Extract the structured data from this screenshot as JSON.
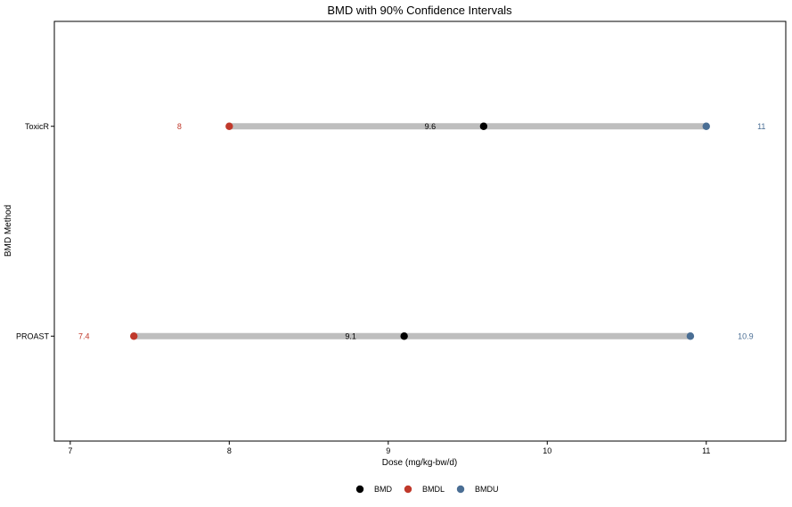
{
  "chart_data": {
    "type": "dumbbell",
    "title": "BMD with 90% Confidence Intervals",
    "xlabel": "Dose (mg/kg-bw/d)",
    "ylabel": "BMD Method",
    "xlim": [
      6.9,
      11.5
    ],
    "xticks": [
      7,
      8,
      9,
      10,
      11
    ],
    "grid": false,
    "legend_position": "bottom",
    "categories": [
      "ToxicR",
      "PROAST"
    ],
    "rows": [
      {
        "method": "ToxicR",
        "bmdl": 8.0,
        "bmd": 9.6,
        "bmdu": 11.0,
        "bmdl_label": "8",
        "bmd_label": "9.6",
        "bmdu_label": "11"
      },
      {
        "method": "PROAST",
        "bmdl": 7.4,
        "bmd": 9.1,
        "bmdu": 10.9,
        "bmdl_label": "7.4",
        "bmd_label": "9.1",
        "bmdu_label": "10.9"
      }
    ],
    "legend": [
      {
        "key": "bmd",
        "name": "BMD",
        "color": "#000000"
      },
      {
        "key": "bmdl",
        "name": "BMDL",
        "color": "#C0392B"
      },
      {
        "key": "bmdu",
        "name": "BMDU",
        "color": "#4A6E94"
      }
    ],
    "colors": {
      "interval": "#BEBEBE",
      "bmd": "#000000",
      "bmdl": "#C0392B",
      "bmdu": "#4A6E94"
    }
  }
}
